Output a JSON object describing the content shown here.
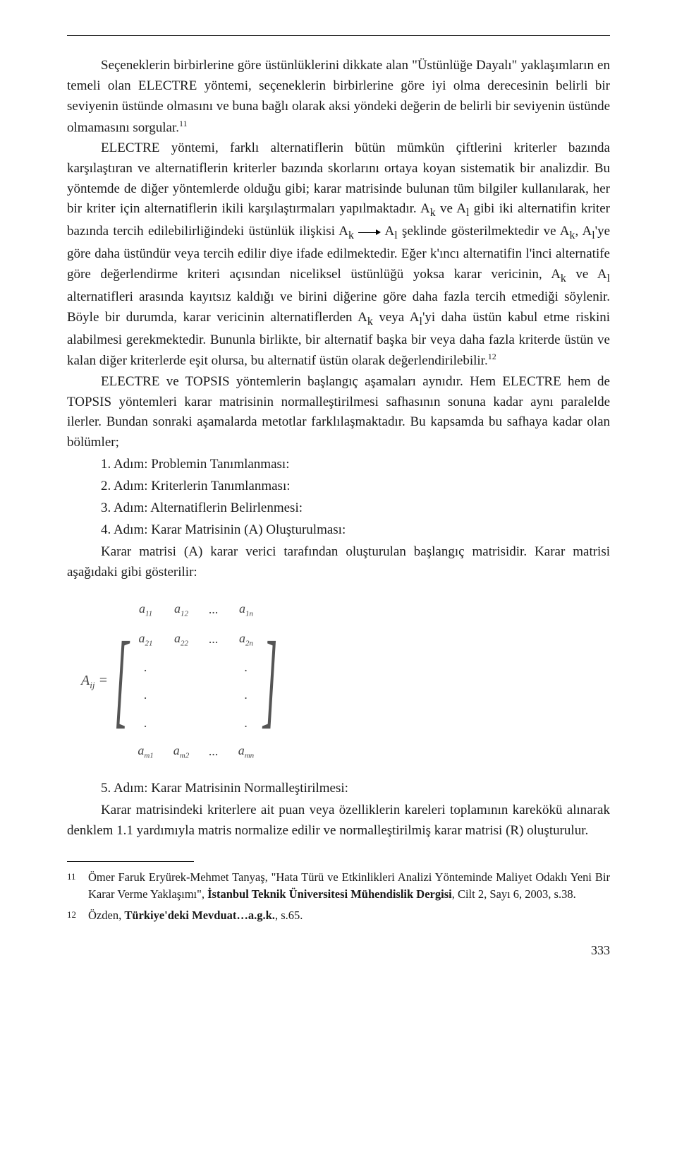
{
  "paragraphs": {
    "p1": "Seçeneklerin birbirlerine göre üstünlüklerini dikkate alan \"Üstünlüğe Dayalı\" yaklaşımların en temeli olan ELECTRE yöntemi, seçeneklerin birbirlerine göre iyi olma derecesinin belirli bir seviyenin üstünde olmasını ve buna bağlı olarak aksi yöndeki değerin de belirli bir seviyenin üstünde olmamasını sorgular.",
    "ref1": "11",
    "p2a": "ELECTRE yöntemi, farklı alternatiflerin bütün mümkün çiftlerini kriterler bazında karşılaştıran ve alternatiflerin kriterler bazında skorlarını ortaya koyan sistematik bir analizdir. Bu yöntemde de diğer yöntemlerde olduğu gibi; karar matrisinde bulunan tüm bilgiler kullanılarak, her bir kriter için alternatiflerin ikili karşılaştırmaları yapılmaktadır. A",
    "p2b": " ve A",
    "p2c": " gibi iki alternatifin kriter bazında tercih edilebilirliğindeki üstünlük ilişkisi A",
    "p2d": " A",
    "p2e": " şeklinde gösterilmektedir ve A",
    "p2f": ", A",
    "p2g": "'ye göre daha üstündür veya tercih edilir diye ifade edilmektedir. Eğer k'ıncı alternatifin l'inci alternatife göre değerlendirme kriteri açısından niceliksel üstünlüğü yoksa karar vericinin, A",
    "p2h": " ve A",
    "p2i": " alternatifleri arasında kayıtsız kaldığı ve birini diğerine göre daha fazla tercih etmediği söylenir. Böyle bir durumda, karar vericinin alternatiflerden A",
    "p2j": " veya A",
    "p2k": "'yi daha üstün kabul etme riskini alabilmesi gerekmektedir. Bununla birlikte, bir alternatif başka bir veya daha fazla kriterde üstün ve kalan diğer kriterlerde eşit olursa, bu alternatif üstün olarak değerlendirilebilir.",
    "ref2": "12",
    "p3": "ELECTRE ve TOPSIS yöntemlerin başlangıç aşamaları aynıdır. Hem ELECTRE hem de TOPSIS yöntemleri karar matrisinin normalleştirilmesi safhasının sonuna kadar aynı paralelde ilerler. Bundan sonraki aşamalarda metotlar farklılaşmaktadır. Bu kapsamda bu safhaya kadar olan bölümler;",
    "step1": "1. Adım: Problemin Tanımlanması:",
    "step2": "2. Adım: Kriterlerin Tanımlanması:",
    "step3": "3. Adım: Alternatiflerin Belirlenmesi:",
    "step4": "4. Adım: Karar Matrisinin (A) Oluşturulması:",
    "p4": "Karar matrisi (A) karar verici tarafından oluşturulan başlangıç matrisidir. Karar matrisi aşağıdaki gibi gösterilir:",
    "matrix_lhs": "A",
    "matrix_lhs_sub": "ij",
    "equals": " = ",
    "matrix": {
      "rows": [
        [
          "a<span class='sub'>11</span>",
          "a<span class='sub'>12</span>",
          "...",
          "a<span class='sub'>1n</span>"
        ],
        [
          "a<span class='sub'>21</span>",
          "a<span class='sub'>22</span>",
          "...",
          "a<span class='sub'>2n</span>"
        ],
        [
          ".",
          "",
          "",
          "."
        ],
        [
          ".",
          "",
          "",
          "."
        ],
        [
          ".",
          "",
          "",
          "."
        ],
        [
          "a<span class='sub'>m1</span>",
          "a<span class='sub'>m2</span>",
          "...",
          "a<span class='sub'>mn</span>"
        ]
      ]
    },
    "step5": "5. Adım: Karar Matrisinin Normalleştirilmesi:",
    "p5": "Karar matrisindeki kriterlere ait puan veya özelliklerin kareleri toplamının karekökü alınarak denklem 1.1 yardımıyla matris normalize edilir ve normalleştirilmiş karar matrisi (R) oluşturulur.",
    "sub_k": "k",
    "sub_l": "l"
  },
  "footnotes": {
    "fn11_num": "11",
    "fn11_a": "Ömer Faruk Eryürek-Mehmet Tanyaş, \"Hata Türü ve Etkinlikleri Analizi Yönteminde Maliyet Odaklı Yeni Bir Karar Verme Yaklaşımı\", ",
    "fn11_b": "İstanbul Teknik Üniversitesi Mühendislik Dergisi",
    "fn11_c": ", Cilt 2, Sayı 6, 2003, s.38.",
    "fn12_num": "12",
    "fn12_a": "Özden, ",
    "fn12_b": "Türkiye'deki Mevduat…a.g.k.",
    "fn12_c": ", s.65."
  },
  "pagenum": "333"
}
